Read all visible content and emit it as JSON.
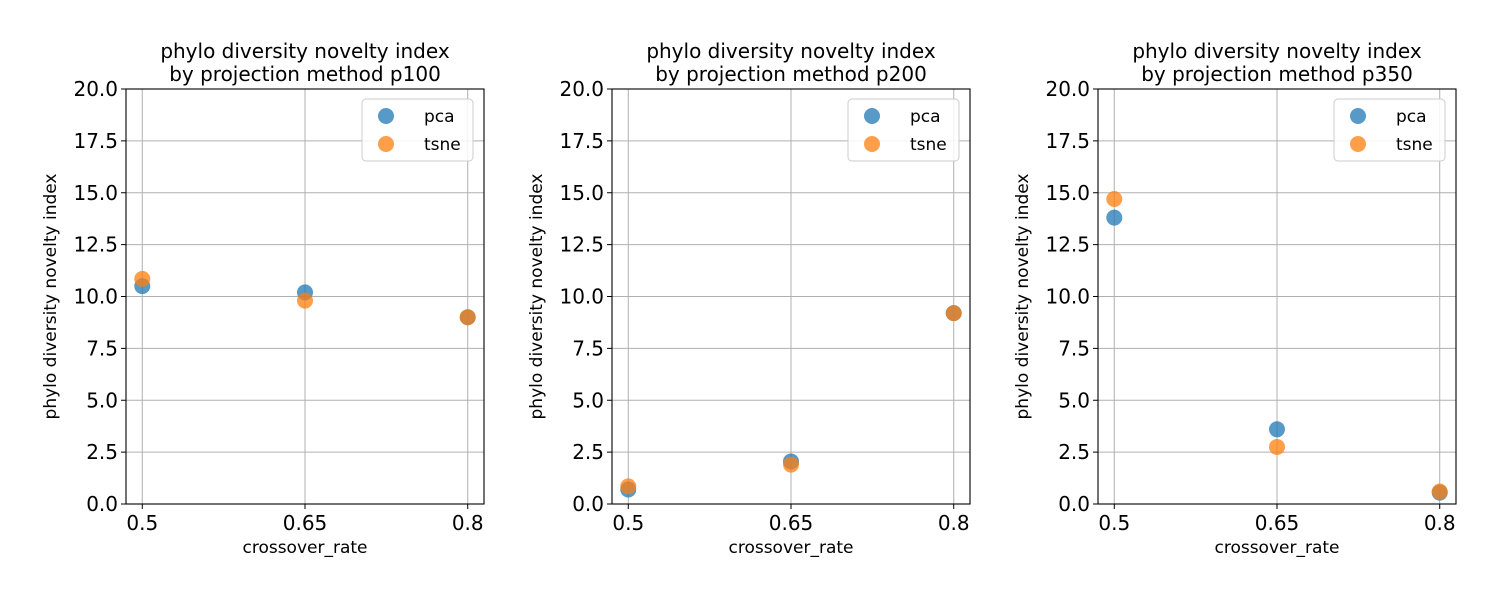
{
  "colors": {
    "pca": "#1f77b4",
    "tsne": "#ff7f0e",
    "grid": "#b0b0b0",
    "axes": "#000000"
  },
  "chart_data": [
    {
      "type": "scatter",
      "title": [
        "phylo diversity novelty index",
        "by projection method p100"
      ],
      "xlabel": "crossover_rate",
      "ylabel": "phylo diversity novelty index",
      "x_ticks": [
        "0.5",
        "0.65",
        "0.8"
      ],
      "x_tick_values": [
        0.5,
        0.65,
        0.8
      ],
      "y_ticks": [
        "0.0",
        "2.5",
        "5.0",
        "7.5",
        "10.0",
        "12.5",
        "15.0",
        "17.5",
        "20.0"
      ],
      "ylim": [
        0,
        20
      ],
      "xlim": [
        0.485,
        0.815
      ],
      "grid": true,
      "legend": "top-right",
      "series": [
        {
          "name": "pca",
          "x": [
            0.5,
            0.65,
            0.8
          ],
          "y": [
            10.5,
            10.2,
            9.0
          ]
        },
        {
          "name": "tsne",
          "x": [
            0.5,
            0.65,
            0.8
          ],
          "y": [
            10.85,
            9.8,
            9.0
          ]
        }
      ]
    },
    {
      "type": "scatter",
      "title": [
        "phylo diversity novelty index",
        "by projection method p200"
      ],
      "xlabel": "crossover_rate",
      "ylabel": "phylo diversity novelty index",
      "x_ticks": [
        "0.5",
        "0.65",
        "0.8"
      ],
      "x_tick_values": [
        0.5,
        0.65,
        0.8
      ],
      "y_ticks": [
        "0.0",
        "2.5",
        "5.0",
        "7.5",
        "10.0",
        "12.5",
        "15.0",
        "17.5",
        "20.0"
      ],
      "ylim": [
        0,
        20
      ],
      "xlim": [
        0.485,
        0.815
      ],
      "grid": true,
      "legend": "top-right",
      "series": [
        {
          "name": "pca",
          "x": [
            0.5,
            0.65,
            0.8
          ],
          "y": [
            0.7,
            2.05,
            9.2
          ]
        },
        {
          "name": "tsne",
          "x": [
            0.5,
            0.65,
            0.8
          ],
          "y": [
            0.85,
            1.9,
            9.2
          ]
        }
      ]
    },
    {
      "type": "scatter",
      "title": [
        "phylo diversity novelty index",
        "by projection method p350"
      ],
      "xlabel": "crossover_rate",
      "ylabel": "phylo diversity novelty index",
      "x_ticks": [
        "0.5",
        "0.65",
        "0.8"
      ],
      "x_tick_values": [
        0.5,
        0.65,
        0.8
      ],
      "y_ticks": [
        "0.0",
        "2.5",
        "5.0",
        "7.5",
        "10.0",
        "12.5",
        "15.0",
        "17.5",
        "20.0"
      ],
      "ylim": [
        0,
        20
      ],
      "xlim": [
        0.485,
        0.815
      ],
      "grid": true,
      "legend": "top-right",
      "series": [
        {
          "name": "pca",
          "x": [
            0.5,
            0.65,
            0.8
          ],
          "y": [
            13.8,
            3.6,
            0.55
          ]
        },
        {
          "name": "tsne",
          "x": [
            0.5,
            0.65,
            0.8
          ],
          "y": [
            14.7,
            2.75,
            0.6
          ]
        }
      ]
    }
  ]
}
